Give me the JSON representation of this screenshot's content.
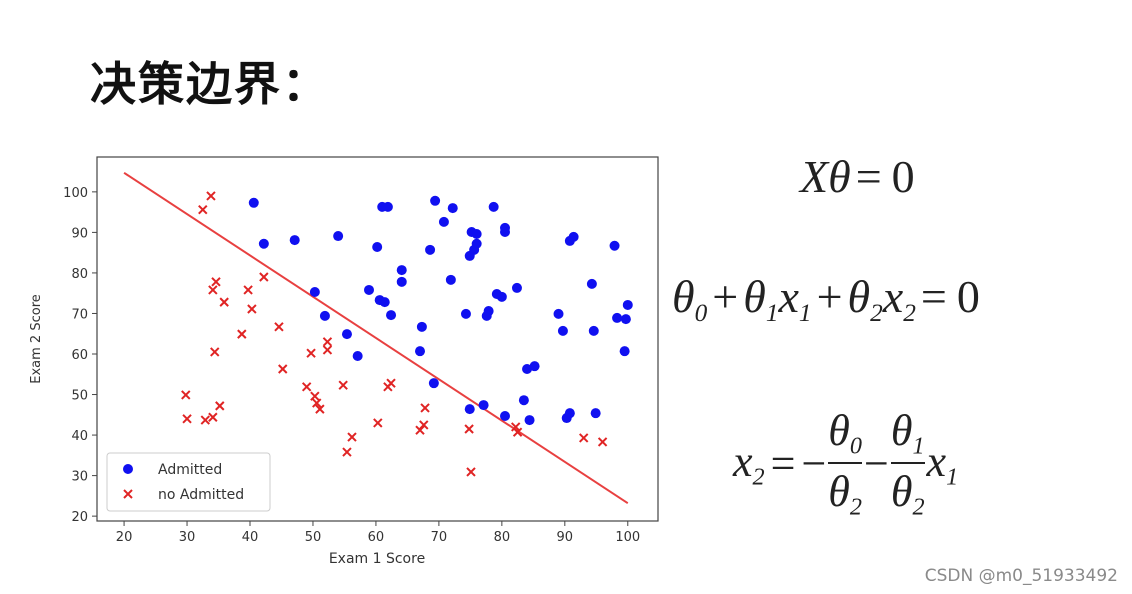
{
  "title": "决策边界：",
  "chart_data": {
    "type": "scatter",
    "xlabel": "Exam 1 Score",
    "ylabel": "Exam 2 Score",
    "xlim": [
      15.7,
      104.8
    ],
    "ylim": [
      18.8,
      108.6
    ],
    "xticks": [
      20,
      30,
      40,
      50,
      60,
      70,
      80,
      90,
      100
    ],
    "yticks": [
      20,
      30,
      40,
      50,
      60,
      70,
      80,
      90,
      100
    ],
    "grid": false,
    "legend": "lower left",
    "series": [
      {
        "name": "Admitted",
        "color": "#1010f0",
        "marker": "o",
        "x": [
          40.6,
          42.2,
          47.1,
          54.0,
          50.3,
          51.9,
          55.4,
          57.1,
          58.9,
          60.2,
          61.0,
          61.9,
          60.6,
          61.4,
          62.4,
          64.1,
          64.1,
          68.6,
          69.4,
          70.8,
          72.2,
          71.9,
          67.3,
          67.0,
          69.2,
          74.3,
          75.2,
          75.6,
          74.9,
          76.0,
          76.0,
          77.6,
          77.9,
          78.7,
          79.2,
          80.0,
          80.5,
          80.5,
          82.4,
          83.5,
          84.0,
          85.2,
          84.4,
          77.1,
          74.9,
          80.5,
          89.0,
          89.7,
          90.8,
          91.4,
          94.3,
          94.6,
          94.9,
          90.8,
          90.3,
          97.9,
          98.3,
          99.7,
          100.0,
          99.5
        ],
        "y": [
          97.3,
          87.2,
          88.1,
          89.1,
          75.3,
          69.4,
          64.9,
          59.5,
          75.8,
          86.4,
          96.3,
          96.3,
          73.3,
          72.8,
          69.6,
          80.7,
          77.8,
          85.7,
          97.8,
          92.6,
          96.0,
          78.3,
          66.7,
          60.7,
          52.8,
          69.9,
          90.1,
          85.7,
          84.2,
          87.2,
          89.6,
          69.4,
          70.6,
          96.3,
          74.8,
          74.1,
          91.1,
          90.1,
          76.3,
          48.6,
          56.3,
          57.0,
          43.7,
          47.4,
          46.4,
          44.7,
          69.9,
          65.7,
          87.9,
          88.9,
          77.3,
          65.7,
          45.4,
          45.4,
          44.2,
          86.7,
          68.9,
          68.6,
          72.1,
          60.7
        ]
      },
      {
        "name": "no Admitted",
        "color": "#e02424",
        "marker": "x",
        "x": [
          33.8,
          32.5,
          34.1,
          34.6,
          35.9,
          34.4,
          39.7,
          40.3,
          42.2,
          38.7,
          44.6,
          45.2,
          49.7,
          52.3,
          52.3,
          49.0,
          50.3,
          50.6,
          51.1,
          54.8,
          55.4,
          56.2,
          61.9,
          62.4,
          60.3,
          67.0,
          67.6,
          67.8,
          74.8,
          75.1,
          82.2,
          82.5,
          93.0,
          96.0,
          29.8,
          30.0,
          32.9,
          34.1,
          35.2
        ],
        "y": [
          99.0,
          95.6,
          75.8,
          77.8,
          72.8,
          60.5,
          75.8,
          71.1,
          79.0,
          64.9,
          66.7,
          56.3,
          60.2,
          63.0,
          61.0,
          51.9,
          49.6,
          47.9,
          46.4,
          52.3,
          35.8,
          39.5,
          51.9,
          52.8,
          43.0,
          41.2,
          42.5,
          46.7,
          41.5,
          30.9,
          42.0,
          40.7,
          39.3,
          38.3,
          49.9,
          44.0,
          43.7,
          44.4,
          47.2
        ]
      }
    ],
    "boundary": {
      "x": [
        20,
        100
      ],
      "y": [
        104.7,
        23.2
      ],
      "color": "#e84040"
    }
  },
  "formulas": [
    [
      "X",
      "θ",
      "=",
      "0"
    ],
    [
      {
        "text": "θ",
        "sub": "0"
      },
      "+",
      {
        "text": "θ",
        "sub": "1"
      },
      {
        "text": "x",
        "sub": "1"
      },
      "+",
      {
        "text": "θ",
        "sub": "2"
      },
      {
        "text": "x",
        "sub": "2"
      },
      "=",
      "0"
    ]
  ],
  "formula3": {
    "lhs": {
      "text": "x",
      "sub": "2"
    },
    "eq": "=",
    "minus1": "−",
    "frac1": {
      "num": {
        "text": "θ",
        "sub": "0"
      },
      "den": {
        "text": "θ",
        "sub": "2"
      }
    },
    "minus2": "−",
    "frac2": {
      "num": {
        "text": "θ",
        "sub": "1"
      },
      "den": {
        "text": "θ",
        "sub": "2"
      }
    },
    "tail": {
      "text": "x",
      "sub": "1"
    }
  },
  "watermark": "CSDN @m0_51933492"
}
